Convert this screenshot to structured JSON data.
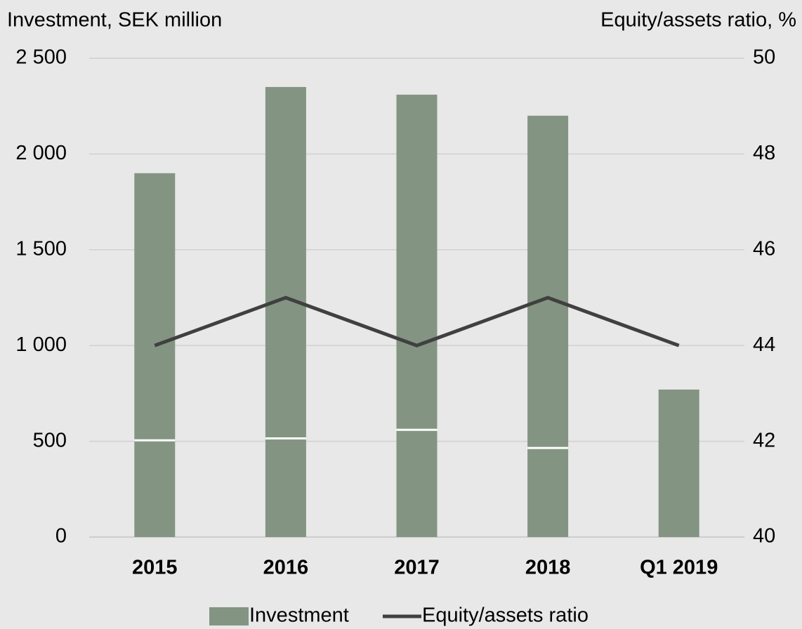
{
  "chart_data": {
    "type": "bar",
    "categories": [
      "2015",
      "2016",
      "2017",
      "2018",
      "Q1 2019"
    ],
    "y_label": "Investment, SEK million",
    "y2_label": "Equity/assets ratio, %",
    "series": [
      {
        "name": "Investment",
        "color": "#839582",
        "values": [
          505,
          515,
          560,
          465,
          770
        ],
        "stack": "a"
      },
      {
        "color": "#839582",
        "values": [
          1395,
          1835,
          1750,
          1735,
          null
        ],
        "stack": "a"
      },
      {
        "name": "Equity/assets ratio",
        "type": "line",
        "color": "#404040",
        "axis": "y2",
        "values": [
          44,
          45,
          44,
          45,
          44
        ]
      }
    ],
    "ylim": [
      0,
      2500
    ],
    "yticks": [
      0,
      500,
      {
        "value": 1000,
        "label": "1 000"
      },
      {
        "value": 1500,
        "label": "1 500"
      },
      {
        "value": 2000,
        "label": "2 000"
      },
      {
        "value": 2500,
        "label": "2 500"
      }
    ],
    "y2lim": [
      40,
      50
    ],
    "y2ticks": [
      40,
      42,
      44,
      46,
      48,
      50
    ],
    "grid": true
  }
}
